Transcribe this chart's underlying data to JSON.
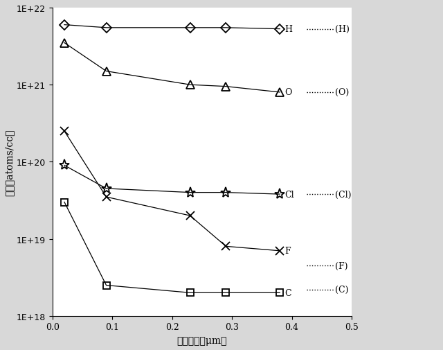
{
  "xlabel": "累積膜厘（μm）",
  "ylabel": "濃度（atoms/cc）",
  "xlim": [
    0.0,
    0.5
  ],
  "ylim_log": [
    1e+18,
    1e+22
  ],
  "xticks": [
    0.0,
    0.1,
    0.2,
    0.3,
    0.4,
    0.5
  ],
  "series": {
    "H": {
      "x": [
        0.02,
        0.09,
        0.23,
        0.29,
        0.38
      ],
      "y": [
        6e+21,
        5.5e+21,
        5.5e+21,
        5.5e+21,
        5.3e+21
      ],
      "marker": "D",
      "markersize": 7,
      "mfc": "none",
      "label_end": "H"
    },
    "O": {
      "x": [
        0.02,
        0.09,
        0.23,
        0.29,
        0.38
      ],
      "y": [
        3.5e+21,
        1.5e+21,
        1e+21,
        9.5e+20,
        8e+20
      ],
      "marker": "^",
      "markersize": 9,
      "mfc": "none",
      "label_end": "O"
    },
    "Cl": {
      "x": [
        0.02,
        0.09,
        0.23,
        0.29,
        0.38
      ],
      "y": [
        9e+19,
        4.5e+19,
        4e+19,
        4e+19,
        3.8e+19
      ],
      "marker": "*",
      "markersize": 11,
      "mfc": "none",
      "label_end": "Cl"
    },
    "F": {
      "x": [
        0.02,
        0.09,
        0.23,
        0.29,
        0.38
      ],
      "y": [
        2.5e+20,
        3.5e+19,
        2e+19,
        8e+18,
        7e+18
      ],
      "marker": "x",
      "markersize": 9,
      "mfc": "none",
      "label_end": "F"
    },
    "C": {
      "x": [
        0.02,
        0.09,
        0.23,
        0.29,
        0.38
      ],
      "y": [
        3e+19,
        2.5e+18,
        2e+18,
        2e+18,
        2e+18
      ],
      "marker": "s",
      "markersize": 7,
      "mfc": "none",
      "label_end": "C"
    }
  },
  "series_order": [
    "H",
    "O",
    "Cl",
    "F",
    "C"
  ],
  "right_annotations": [
    {
      "label": "H",
      "dashed_label": "(H)",
      "y": 5.3e+21,
      "has_dashed": true
    },
    {
      "label": "O",
      "dashed_label": "(O)",
      "y": 8e+20,
      "has_dashed": true
    },
    {
      "label": "Cl",
      "dashed_label": "(Cl)",
      "y": 3.8e+19,
      "has_dashed": true
    },
    {
      "label": "F",
      "dashed_label": null,
      "y": 7e+18,
      "has_dashed": false
    },
    {
      "label": "C",
      "dashed_label": null,
      "y": 2e+18,
      "has_dashed": false
    }
  ],
  "bottom_dashed": [
    {
      "label": "(F)",
      "y": 7e+18
    },
    {
      "label": "(C)",
      "y": 2e+18
    }
  ]
}
